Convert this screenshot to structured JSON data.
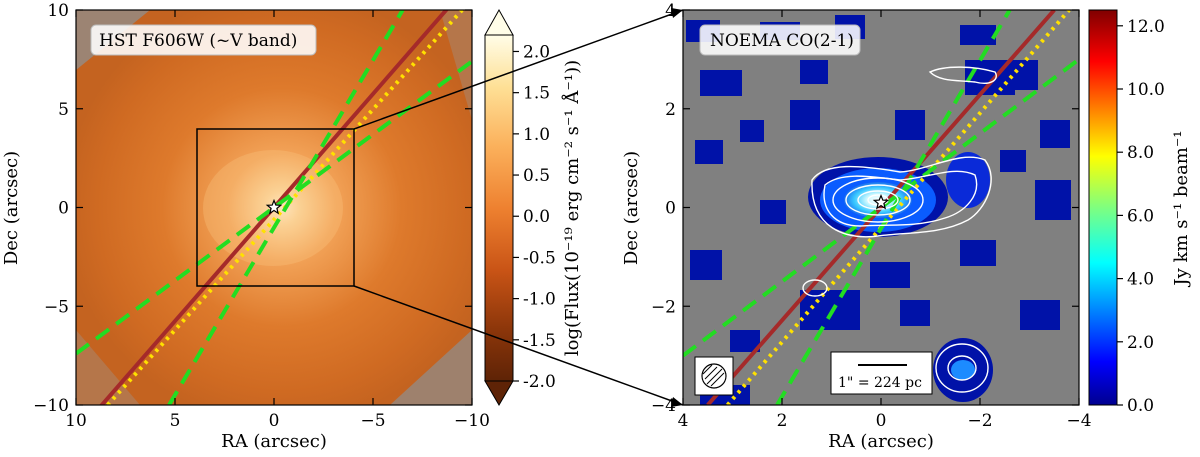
{
  "chart_data": [
    {
      "type": "heatmap",
      "title": "HST F606W (~V band)",
      "xlabel": "RA (arcsec)",
      "ylabel": "Dec (arcsec)",
      "xlim": [
        10,
        -10
      ],
      "ylim": [
        -10,
        10
      ],
      "xticks": [
        10,
        5,
        0,
        -5,
        -10
      ],
      "yticks": [
        10,
        5,
        0,
        -5,
        -10
      ],
      "xtick_labels": [
        "10",
        "5",
        "0",
        "−5",
        "−10"
      ],
      "ytick_labels": [
        "10",
        "5",
        "0",
        "−5",
        "−10"
      ],
      "colorbar": {
        "label": "log(Flux(10⁻¹⁹ erg cm⁻² s⁻¹ Å⁻¹))",
        "range": [
          -2.0,
          2.2
        ],
        "ticks": [
          "2.0",
          "1.5",
          "1.0",
          "0.5",
          "0.0",
          "-0.5",
          "-1.0",
          "-1.5",
          "-2.0"
        ],
        "tick_values": [
          2.0,
          1.5,
          1.0,
          0.5,
          0.0,
          -0.5,
          -1.0,
          -1.5,
          -2.0
        ],
        "colormap": "YlOrBr_r",
        "extend": "both"
      },
      "zoom_box": {
        "x": [
          -4,
          4
        ],
        "y": [
          -4,
          4
        ]
      },
      "center_marker": [
        0,
        0
      ],
      "lines": [
        {
          "style": "solid",
          "color": "#a52a2a",
          "x": [
            10,
            -10
          ],
          "y": [
            -11.5,
            11.5
          ]
        },
        {
          "style": "dotted",
          "color": "#ffe100",
          "x": [
            8.4,
            -9.5
          ],
          "y": [
            -10,
            10
          ]
        },
        {
          "style": "dashed",
          "color": "#22dd22",
          "x": [
            10,
            -10
          ],
          "y": [
            -7.4,
            7.4
          ]
        },
        {
          "style": "dashed",
          "color": "#22dd22",
          "x": [
            5.3,
            -6.5
          ],
          "y": [
            -10,
            10
          ]
        }
      ]
    },
    {
      "type": "heatmap",
      "title": "NOEMA CO(2-1)",
      "xlabel": "RA (arcsec)",
      "ylabel": "Dec (arcsec)",
      "xlim": [
        4,
        -4
      ],
      "ylim": [
        -4,
        4
      ],
      "xticks": [
        4,
        2,
        0,
        -2,
        -4
      ],
      "yticks": [
        4,
        2,
        0,
        -2,
        -4
      ],
      "xtick_labels": [
        "4",
        "2",
        "0",
        "−2",
        "−4"
      ],
      "ytick_labels": [
        "4",
        "2",
        "0",
        "−2",
        "−4"
      ],
      "scalebar_label": "1\" = 224 pc",
      "colorbar": {
        "label": "Jy km s⁻¹ beam⁻¹",
        "range": [
          0,
          12.5
        ],
        "ticks": [
          "12.0",
          "10.0",
          "8.0",
          "6.0",
          "4.0",
          "2.0",
          "0.0"
        ],
        "tick_values": [
          12,
          10,
          8,
          6,
          4,
          2,
          0
        ],
        "colormap": "jet"
      },
      "center_marker": [
        0,
        0.1
      ],
      "lines": [
        {
          "style": "solid",
          "color": "#a52a2a",
          "x": [
            3.5,
            -3.5
          ],
          "y": [
            -4,
            4
          ]
        },
        {
          "style": "dotted",
          "color": "#ffe100",
          "x": [
            3.1,
            -3.8
          ],
          "y": [
            -4,
            4
          ]
        },
        {
          "style": "dashed",
          "color": "#22dd22",
          "x": [
            4,
            -4
          ],
          "y": [
            -3,
            3
          ]
        },
        {
          "style": "dashed",
          "color": "#22dd22",
          "x": [
            2.1,
            -2.6
          ],
          "y": [
            -4,
            4
          ]
        }
      ],
      "emission_peak": [
        0.05,
        0.1
      ],
      "contour_color": "#ffffff"
    }
  ]
}
